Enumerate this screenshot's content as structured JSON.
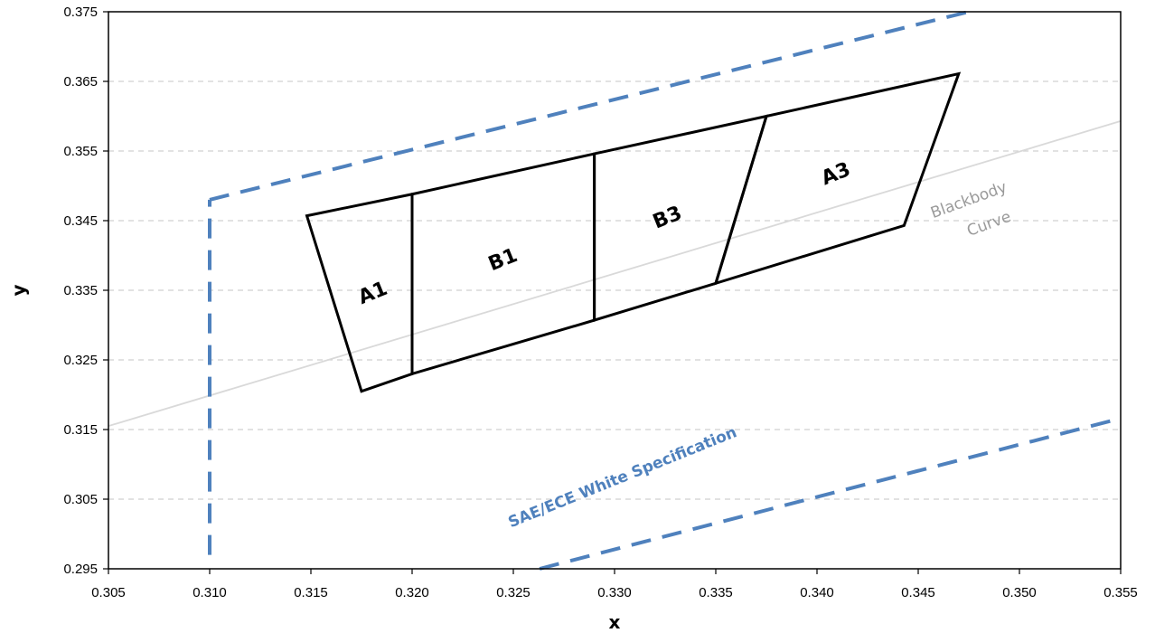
{
  "chart_data": {
    "type": "line",
    "title": "",
    "xlabel": "x",
    "ylabel": "y",
    "xlim": [
      0.305,
      0.355
    ],
    "ylim": [
      0.295,
      0.375
    ],
    "x_ticks": [
      "0.305",
      "0.310",
      "0.315",
      "0.320",
      "0.325",
      "0.330",
      "0.335",
      "0.340",
      "0.345",
      "0.350",
      "0.355"
    ],
    "y_ticks": [
      "0.295",
      "0.305",
      "0.315",
      "0.325",
      "0.335",
      "0.345",
      "0.355",
      "0.365",
      "0.375"
    ],
    "grid": "horizontal dashed",
    "legend": "none",
    "colors": {
      "bins": "#000000",
      "spec": "#4f81bd",
      "blackbody": "#d9d9d9",
      "grid": "#d0d0d0"
    },
    "bins": [
      {
        "name": "A1",
        "points": [
          [
            0.3148,
            0.3457
          ],
          [
            0.32,
            0.3488
          ],
          [
            0.32,
            0.323
          ],
          [
            0.3175,
            0.3205
          ]
        ]
      },
      {
        "name": "B1",
        "points": [
          [
            0.32,
            0.3488
          ],
          [
            0.329,
            0.3546
          ],
          [
            0.329,
            0.3307
          ],
          [
            0.32,
            0.323
          ]
        ]
      },
      {
        "name": "B3",
        "points": [
          [
            0.329,
            0.3546
          ],
          [
            0.3375,
            0.36
          ],
          [
            0.335,
            0.336
          ],
          [
            0.329,
            0.3307
          ]
        ]
      },
      {
        "name": "A3",
        "points": [
          [
            0.3375,
            0.36
          ],
          [
            0.347,
            0.3661
          ],
          [
            0.3443,
            0.3443
          ],
          [
            0.335,
            0.336
          ]
        ]
      }
    ],
    "series": [
      {
        "name": "Blackbody Curve",
        "x": [
          0.305,
          0.355
        ],
        "y": [
          0.3155,
          0.3593
        ]
      },
      {
        "name": "SAE/ECE White Specification",
        "segments": [
          {
            "x": [
              0.31,
              0.31
            ],
            "y": [
              0.297,
              0.348
            ]
          },
          {
            "x": [
              0.31,
              0.3475
            ],
            "y": [
              0.348,
              0.375
            ]
          },
          {
            "x": [
              0.3263,
              0.355
            ],
            "y": [
              0.295,
              0.3166
            ]
          }
        ]
      }
    ],
    "annotations": [
      {
        "text": "Blackbody",
        "x": 0.3475,
        "y": 0.3479,
        "rotation": -20
      },
      {
        "text": "Curve",
        "x": 0.3485,
        "y": 0.3445,
        "rotation": -20
      },
      {
        "text": "SAE/ECE White Specification",
        "x": 0.3304,
        "y": 0.3081,
        "rotation": -22
      }
    ]
  }
}
